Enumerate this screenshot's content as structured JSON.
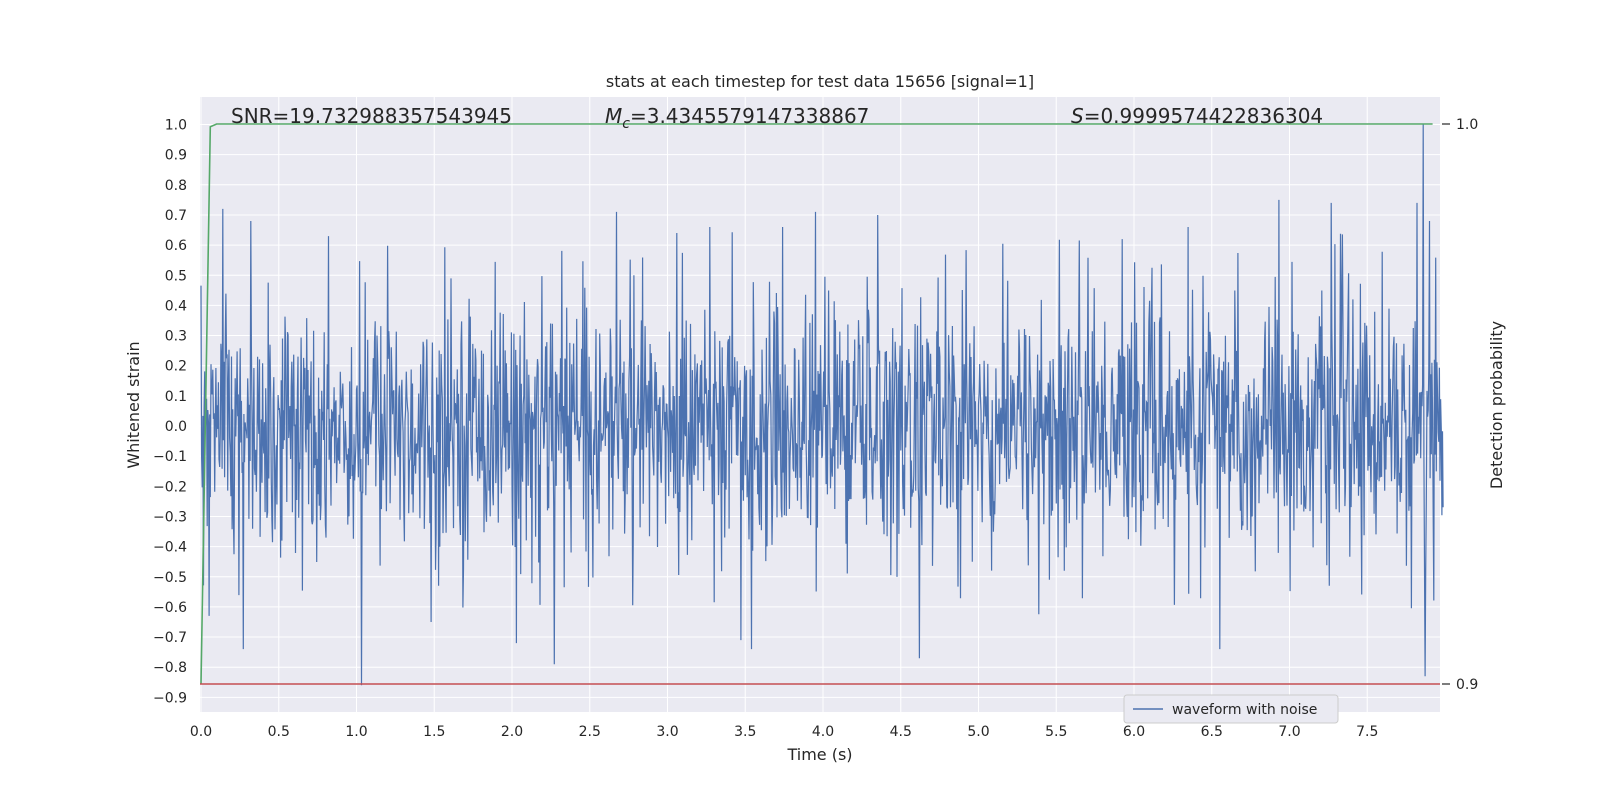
{
  "chart_data": {
    "type": "line",
    "title": "stats at each timestep for test data 15656 [signal=1]",
    "xlabel": "Time (s)",
    "ylabel": "Whitened strain",
    "y2label": "Detection probability",
    "xlim": [
      0.0,
      7.99
    ],
    "ylim": [
      -0.95,
      1.08
    ],
    "y2ticks": [
      {
        "value": 1.0,
        "label": "1.0"
      },
      {
        "value": 0.9,
        "label": "0.9"
      }
    ],
    "xticks": [
      "0.0",
      "0.5",
      "1.0",
      "1.5",
      "2.0",
      "2.5",
      "3.0",
      "3.5",
      "4.0",
      "4.5",
      "5.0",
      "5.5",
      "6.0",
      "6.5",
      "7.0",
      "7.5"
    ],
    "yticks": [
      "1.0",
      "0.9",
      "0.8",
      "0.7",
      "0.6",
      "0.5",
      "0.4",
      "0.3",
      "0.2",
      "0.1",
      "0.0",
      "−0.1",
      "−0.2",
      "−0.3",
      "−0.4",
      "−0.5",
      "−0.6",
      "−0.7",
      "−0.8",
      "−0.9"
    ],
    "grid": true,
    "legend_position": "bottom-right",
    "annotations": {
      "snr": "SNR=19.732988357543945",
      "mc_symbol": "M",
      "mc_sub": "c",
      "mc_value": "=3.4345579147338867",
      "s_symbol": "S",
      "s_value": "=0.9999574422836304"
    },
    "series": [
      {
        "name": "waveform with noise",
        "color": "#4c72b0",
        "sample_interval": 0.004,
        "noise_envelope": 0.42,
        "spikes": [
          {
            "x": 0.05,
            "y": -0.63
          },
          {
            "x": 0.14,
            "y": 0.72
          },
          {
            "x": 0.27,
            "y": -0.74
          },
          {
            "x": 0.32,
            "y": 0.68
          },
          {
            "x": 0.82,
            "y": 0.63
          },
          {
            "x": 1.03,
            "y": -0.86
          },
          {
            "x": 1.48,
            "y": -0.65
          },
          {
            "x": 2.03,
            "y": -0.72
          },
          {
            "x": 2.27,
            "y": -0.79
          },
          {
            "x": 2.67,
            "y": 0.71
          },
          {
            "x": 3.47,
            "y": -0.71
          },
          {
            "x": 3.54,
            "y": -0.74
          },
          {
            "x": 3.95,
            "y": 0.71
          },
          {
            "x": 4.35,
            "y": 0.7
          },
          {
            "x": 4.62,
            "y": -0.77
          },
          {
            "x": 6.55,
            "y": -0.74
          },
          {
            "x": 6.93,
            "y": 0.75
          },
          {
            "x": 7.27,
            "y": 0.74
          },
          {
            "x": 7.82,
            "y": 0.74
          },
          {
            "x": 7.86,
            "y": 1.0
          },
          {
            "x": 7.87,
            "y": -0.83
          },
          {
            "x": 7.9,
            "y": 0.68
          }
        ]
      },
      {
        "name": "",
        "axis": "right",
        "color": "#55a868",
        "points": [
          [
            0.0,
            0.9
          ],
          [
            0.06,
            0.9995
          ],
          [
            0.1,
            1.0
          ],
          [
            7.92,
            1.0
          ]
        ]
      }
    ],
    "reference_line": {
      "axis": "right",
      "y": 0.9,
      "color": "#c44e52"
    }
  }
}
